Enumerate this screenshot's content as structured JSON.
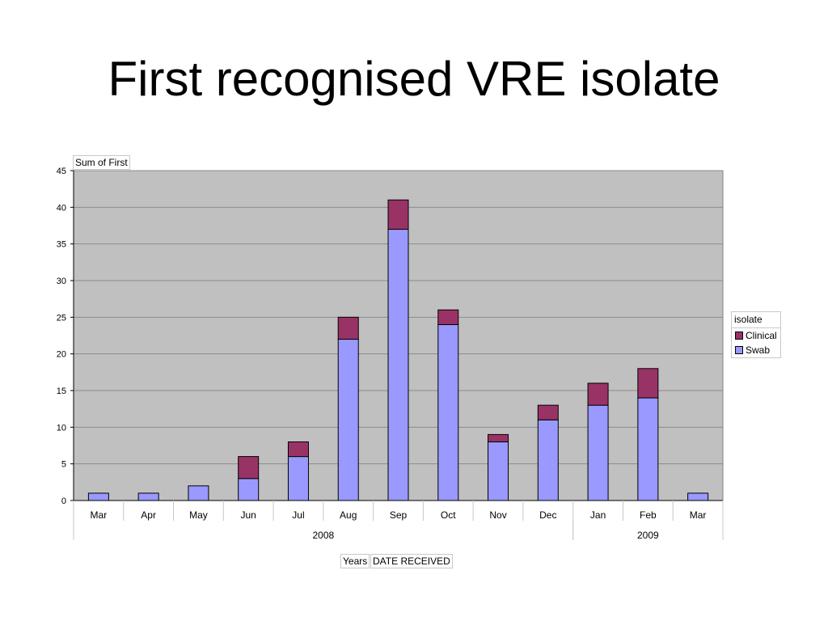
{
  "slide": {
    "title": "First recognised VRE isolate"
  },
  "pivot": {
    "data_field": "Sum of First",
    "row_field_1": "Years",
    "row_field_2": "DATE RECEIVED",
    "legend_field": "isolate"
  },
  "colors": {
    "plot_background": "#c0c0c0",
    "gridline": "#8c8c8c",
    "clinical": "#993366",
    "swab": "#9999ff"
  },
  "chart_data": {
    "type": "bar",
    "stacked": true,
    "categories": [
      "Mar",
      "Apr",
      "May",
      "Jun",
      "Jul",
      "Aug",
      "Sep",
      "Oct",
      "Nov",
      "Dec",
      "Jan",
      "Feb",
      "Mar"
    ],
    "groups": [
      {
        "label": "2008",
        "from": 0,
        "to": 9
      },
      {
        "label": "2009",
        "from": 10,
        "to": 12
      }
    ],
    "series": [
      {
        "name": "Swab",
        "color": "#9999ff",
        "values": [
          1,
          1,
          2,
          3,
          6,
          22,
          37,
          24,
          8,
          11,
          13,
          14,
          1
        ]
      },
      {
        "name": "Clinical",
        "color": "#993366",
        "values": [
          0,
          0,
          0,
          3,
          2,
          3,
          4,
          2,
          1,
          2,
          3,
          4,
          0
        ]
      }
    ],
    "legend_order": [
      "Clinical",
      "Swab"
    ],
    "ylim": [
      0,
      45
    ],
    "yticks": [
      0,
      5,
      10,
      15,
      20,
      25,
      30,
      35,
      40,
      45
    ],
    "grid": true,
    "legend_position": "right"
  }
}
